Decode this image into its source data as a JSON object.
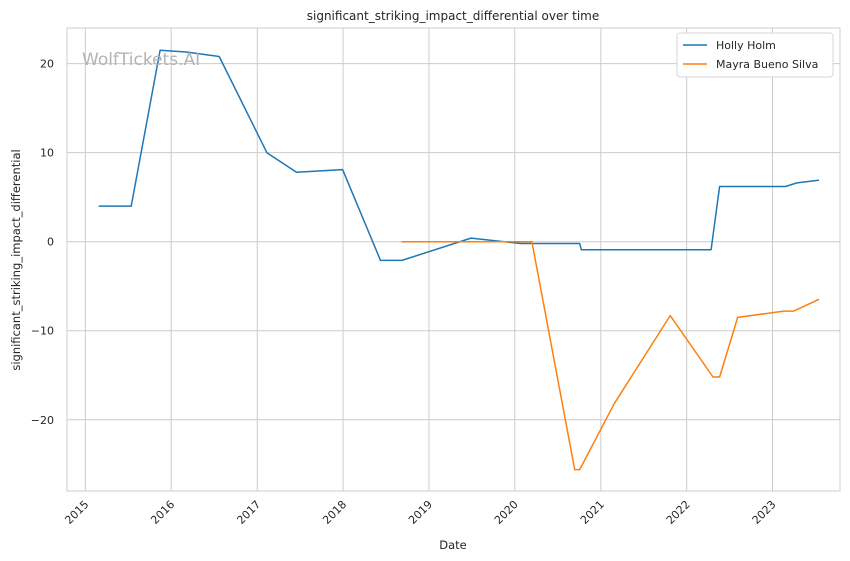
{
  "watermark": "WolfTickets.AI",
  "chart_data": {
    "type": "line",
    "title": "significant_striking_impact_differential over time",
    "xlabel": "Date",
    "ylabel": "significant_striking_impact_differential",
    "x_type": "date",
    "xlim": [
      "2014-10-15",
      "2023-10-15"
    ],
    "ylim": [
      -28,
      24
    ],
    "x_ticks": [
      "2015-01-01",
      "2016-01-01",
      "2017-01-01",
      "2018-01-01",
      "2019-01-01",
      "2020-01-01",
      "2021-01-01",
      "2022-01-01",
      "2023-01-01"
    ],
    "x_tick_labels": [
      "2015",
      "2016",
      "2017",
      "2018",
      "2019",
      "2020",
      "2021",
      "2022",
      "2023"
    ],
    "y_ticks": [
      -20,
      -10,
      0,
      10,
      20
    ],
    "y_tick_labels": [
      "−20",
      "−10",
      "0",
      "10",
      "20"
    ],
    "grid": true,
    "legend_position": "top-right",
    "series": [
      {
        "name": "Holly Holm",
        "color": "#1f77b4",
        "points": [
          [
            "2015-03-01",
            4.0
          ],
          [
            "2015-07-15",
            4.0
          ],
          [
            "2015-11-15",
            21.5
          ],
          [
            "2016-03-05",
            21.3
          ],
          [
            "2016-07-23",
            20.8
          ],
          [
            "2017-02-11",
            10.0
          ],
          [
            "2017-06-17",
            7.8
          ],
          [
            "2017-12-30",
            8.1
          ],
          [
            "2018-06-09",
            -2.1
          ],
          [
            "2018-09-08",
            -2.1
          ],
          [
            "2019-06-29",
            0.4
          ],
          [
            "2020-01-25",
            -0.2
          ],
          [
            "2020-07-15",
            -0.2
          ],
          [
            "2020-10-03",
            -0.2
          ],
          [
            "2020-10-10",
            -0.9
          ],
          [
            "2022-04-15",
            -0.9
          ],
          [
            "2022-05-21",
            6.2
          ],
          [
            "2023-02-25",
            6.2
          ],
          [
            "2023-04-15",
            6.6
          ],
          [
            "2023-07-15",
            6.9
          ]
        ]
      },
      {
        "name": "Mayra Bueno Silva",
        "color": "#ff7f0e",
        "points": [
          [
            "2018-09-08",
            0.0
          ],
          [
            "2019-06-29",
            0.0
          ],
          [
            "2020-03-14",
            0.0
          ],
          [
            "2020-09-12",
            -25.6
          ],
          [
            "2020-10-03",
            -25.6
          ],
          [
            "2021-02-27",
            -18.2
          ],
          [
            "2021-10-23",
            -8.3
          ],
          [
            "2022-04-23",
            -15.2
          ],
          [
            "2022-05-21",
            -15.2
          ],
          [
            "2022-08-06",
            -8.5
          ],
          [
            "2023-02-18",
            -7.8
          ],
          [
            "2023-04-01",
            -7.8
          ],
          [
            "2023-07-15",
            -6.5
          ]
        ]
      }
    ]
  }
}
